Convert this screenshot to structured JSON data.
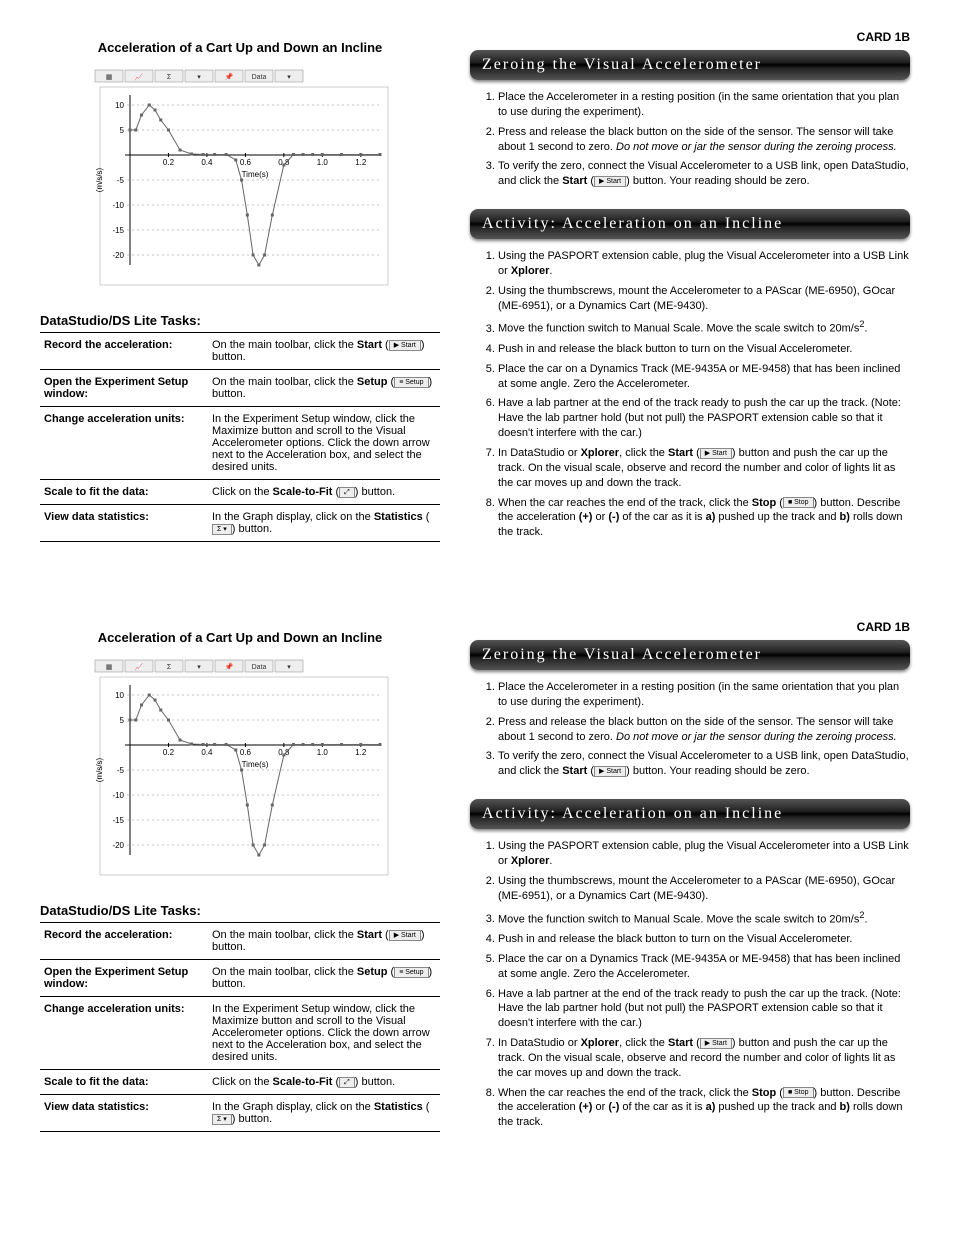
{
  "card_label": "CARD 1B",
  "left": {
    "chart_title": "Acceleration of a Cart Up and Down an Incline",
    "tasks_heading": "DataStudio/DS Lite Tasks:",
    "chart": {
      "type": "line",
      "xlabel": "Time(s)",
      "ylabel": "(m/s/s)",
      "xlim": [
        0,
        1.3
      ],
      "ylim": [
        -22,
        12
      ],
      "xticks": [
        0.2,
        0.4,
        0.6,
        0.8,
        1.0,
        1.2
      ],
      "yticks": [
        -20,
        -15,
        -10,
        -5,
        5,
        10
      ],
      "series": {
        "x": [
          0,
          0.03,
          0.06,
          0.1,
          0.13,
          0.16,
          0.2,
          0.26,
          0.32,
          0.38,
          0.44,
          0.5,
          0.55,
          0.58,
          0.61,
          0.64,
          0.67,
          0.7,
          0.74,
          0.8,
          0.85,
          0.9,
          0.95,
          1.0,
          1.1,
          1.2,
          1.3
        ],
        "y": [
          5,
          5,
          8,
          10,
          9,
          7,
          5,
          1,
          0.2,
          0.1,
          0.1,
          0.1,
          -1,
          -5,
          -12,
          -20,
          -22,
          -20,
          -12,
          -2,
          0.1,
          0.1,
          0.1,
          0.1,
          0.1,
          0.1,
          0.1
        ]
      },
      "line_color": "#666666",
      "marker_color": "#666666",
      "grid_color": "#888888",
      "axis_color": "#000000",
      "background": "#ffffff",
      "marker_size": 3,
      "toolbar_icons": [
        "grid",
        "chart",
        "sigma",
        "dropdown",
        "pin",
        "Data",
        "dropdown"
      ]
    },
    "tasks": [
      {
        "label": "Record the acceleration:",
        "desc_pre": "On the main toolbar, click the ",
        "bold1": "Start",
        "desc_mid": " (",
        "btn": "▶ Start",
        "desc_post": ") button."
      },
      {
        "label": "Open the Experiment Setup window:",
        "desc_pre": "On the main toolbar, click the ",
        "bold1": "Setup",
        "desc_mid": " (",
        "btn": "≡ Setup",
        "desc_post": ") button."
      },
      {
        "label": "Change acceleration units:",
        "desc_pre": "In the Experiment Setup window, click the Maximize button and scroll to the Visual Accelerometer options. Click the down arrow next to the Acceleration box, and select the desired units.",
        "bold1": "",
        "desc_mid": "",
        "btn": "",
        "desc_post": ""
      },
      {
        "label": "Scale to fit the data:",
        "desc_pre": "Click on the ",
        "bold1": "Scale-to-Fit",
        "desc_mid": " (",
        "btn": "⤢",
        "desc_post": ") button."
      },
      {
        "label": "View data statistics:",
        "desc_pre": "In the Graph display, click on the ",
        "bold1": "Statistics",
        "desc_mid": " (",
        "btn": "Σ ▾",
        "desc_post": ") button."
      }
    ]
  },
  "right": {
    "zero_header": "Zeroing the Visual Accelerometer",
    "zero_steps": [
      {
        "pre": "Place the Accelerometer in a resting position (in the same orientation that you plan to use during the experiment).",
        "italic": "",
        "post": ""
      },
      {
        "pre": "Press and release the black button on the side of the sensor.  The sensor will take about 1 second to zero.  ",
        "italic": "Do not move or jar the sensor during the zeroing process.",
        "post": ""
      },
      {
        "pre": "To verify the zero, connect the Visual Accelerometer to a USB link, open DataStudio, and click the ",
        "bold": "Start",
        "mid": " (",
        "btn": "▶ Start",
        "post": ") button.  Your reading should be zero."
      }
    ],
    "activity_header": "Activity:  Acceleration on an Incline",
    "activity_steps": [
      "Using the PASPORT extension cable, plug the Visual Accelerometer into a USB Link or <b>Xplorer</b>.",
      "Using the thumbscrews, mount the Accelerometer to a PAScar (ME-6950), GOcar (ME-6951), or a Dynamics Cart (ME-9430).",
      "Move the function switch to Manual Scale.  Move the scale switch to 20m/s<sup>2</sup>.",
      "Push in and release the black button to turn on the Visual Accelerometer.",
      "Place the car on a Dynamics Track (ME-9435A or ME-9458) that has been inclined at some angle.  Zero the Accelerometer.",
      "Have a lab partner at the end of the track ready to push the car up the track.  (Note: Have the lab partner hold (but not pull) the PASPORT extension cable so that it doesn't interfere with the car.)",
      "In DataStudio or <b>Xplorer</b>, click the <b>Start</b> (<span class='btn-img'>▶ Start</span>) button and push the car up the track.  On the visual scale, observe and record the number and color of lights lit as the car moves up and down the track.",
      "When the car reaches the end of the track, click the <b>Stop</b> (<span class='btn-img'>■ Stop</span>) button. Describe the acceleration <b>(+)</b> or <b>(-)</b> of the car as it is <b>a)</b> pushed up the track and <b>b)</b> rolls down the track."
    ]
  }
}
